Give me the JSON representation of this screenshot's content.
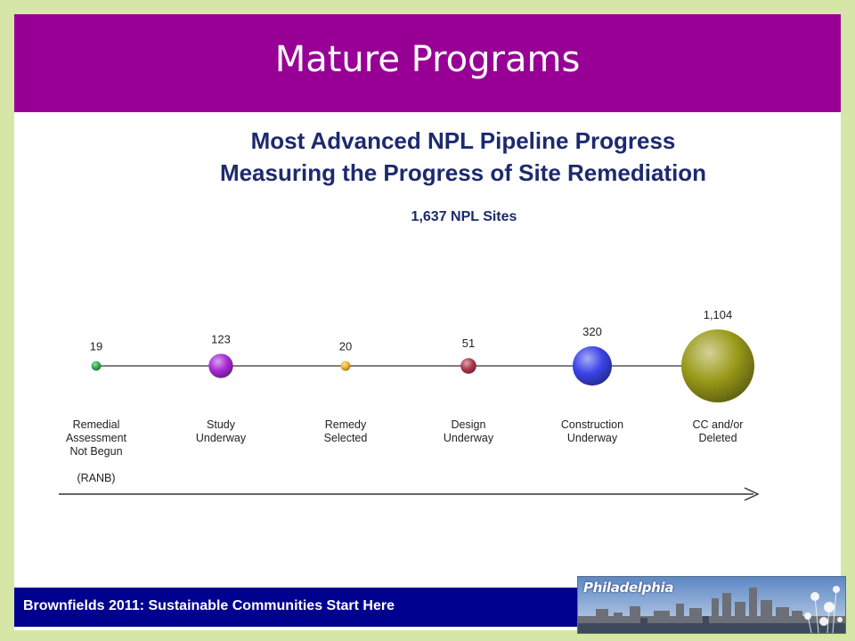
{
  "slide": {
    "title": "Mature Programs",
    "footer_text": "Brownfields 2011:  Sustainable Communities Start Here",
    "logo_text": "Philadelphia"
  },
  "colors": {
    "background": "#d5e6a6",
    "title_bar": "#980095",
    "footer_bar": "#00008f",
    "heading_text": "#1c2a6e"
  },
  "chart_data": {
    "type": "pipeline-bubble",
    "title": "Most Advanced NPL Pipeline Progress",
    "subtitle": "Measuring the Progress of Site Remediation",
    "total_label": "1,637 NPL Sites",
    "stages": [
      {
        "label_lines": [
          "Remedial",
          "Assessment",
          "Not Begun"
        ],
        "extra_label": "(RANB)",
        "value": 19,
        "value_label": "19",
        "color": "#2fae4e"
      },
      {
        "label_lines": [
          "Study",
          "Underway"
        ],
        "value": 123,
        "value_label": "123",
        "color": "#a82bd6"
      },
      {
        "label_lines": [
          "Remedy",
          "Selected"
        ],
        "value": 20,
        "value_label": "20",
        "color": "#f0b22a"
      },
      {
        "label_lines": [
          "Design",
          "Underway"
        ],
        "value": 51,
        "value_label": "51",
        "color": "#b03a4e"
      },
      {
        "label_lines": [
          "Construction",
          "Underway"
        ],
        "value": 320,
        "value_label": "320",
        "color": "#3a44e6"
      },
      {
        "label_lines": [
          "CC and/or",
          "Deleted"
        ],
        "value": 1104,
        "value_label": "1,104",
        "color": "#9a9a1a"
      }
    ]
  }
}
